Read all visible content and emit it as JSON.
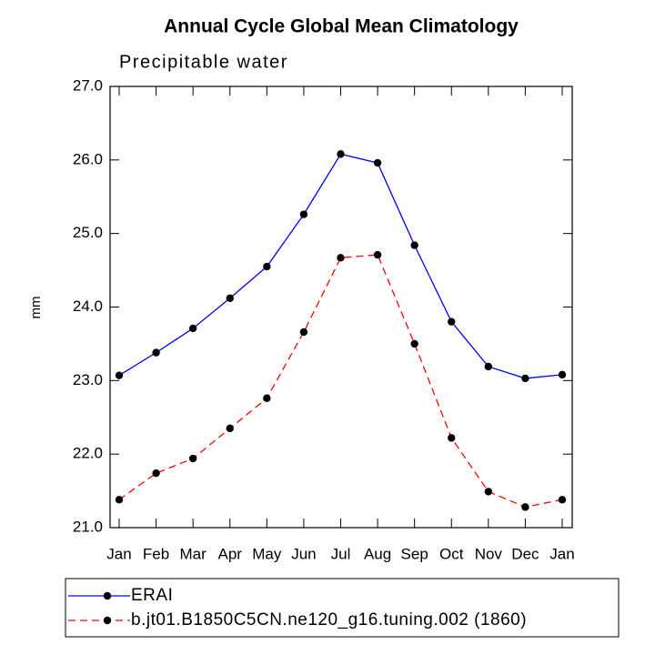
{
  "chart_data": {
    "type": "line",
    "title": "Annual Cycle Global Mean Climatology",
    "subtitle": "Precipitable water",
    "y_label": "mm",
    "categories": [
      "Jan",
      "Feb",
      "Mar",
      "Apr",
      "May",
      "Jun",
      "Jul",
      "Aug",
      "Sep",
      "Oct",
      "Nov",
      "Dec",
      "Jan"
    ],
    "series": [
      {
        "name": "ERAI",
        "color": "#0000ff",
        "dash": false,
        "values": [
          23.07,
          23.38,
          23.71,
          24.12,
          24.55,
          25.26,
          26.08,
          25.96,
          24.84,
          23.8,
          23.19,
          23.03,
          23.08
        ]
      },
      {
        "name": "b.jt01.B1850C5CN.ne120_g16.tuning.002 (1860)",
        "color": "#ff0000",
        "dash": true,
        "values": [
          21.38,
          21.74,
          21.94,
          22.35,
          22.76,
          23.66,
          24.67,
          24.71,
          23.5,
          22.22,
          21.49,
          21.28,
          21.38
        ]
      }
    ],
    "ylim": [
      21,
      27
    ],
    "yticks": [
      {
        "value": 21,
        "label": "21.0"
      },
      {
        "value": 22,
        "label": "22.0"
      },
      {
        "value": 23,
        "label": "23.0"
      },
      {
        "value": 24,
        "label": "24.0"
      },
      {
        "value": 25,
        "label": "25.0"
      },
      {
        "value": 26,
        "label": "26.0"
      },
      {
        "value": 27,
        "label": "27.0"
      }
    ]
  }
}
